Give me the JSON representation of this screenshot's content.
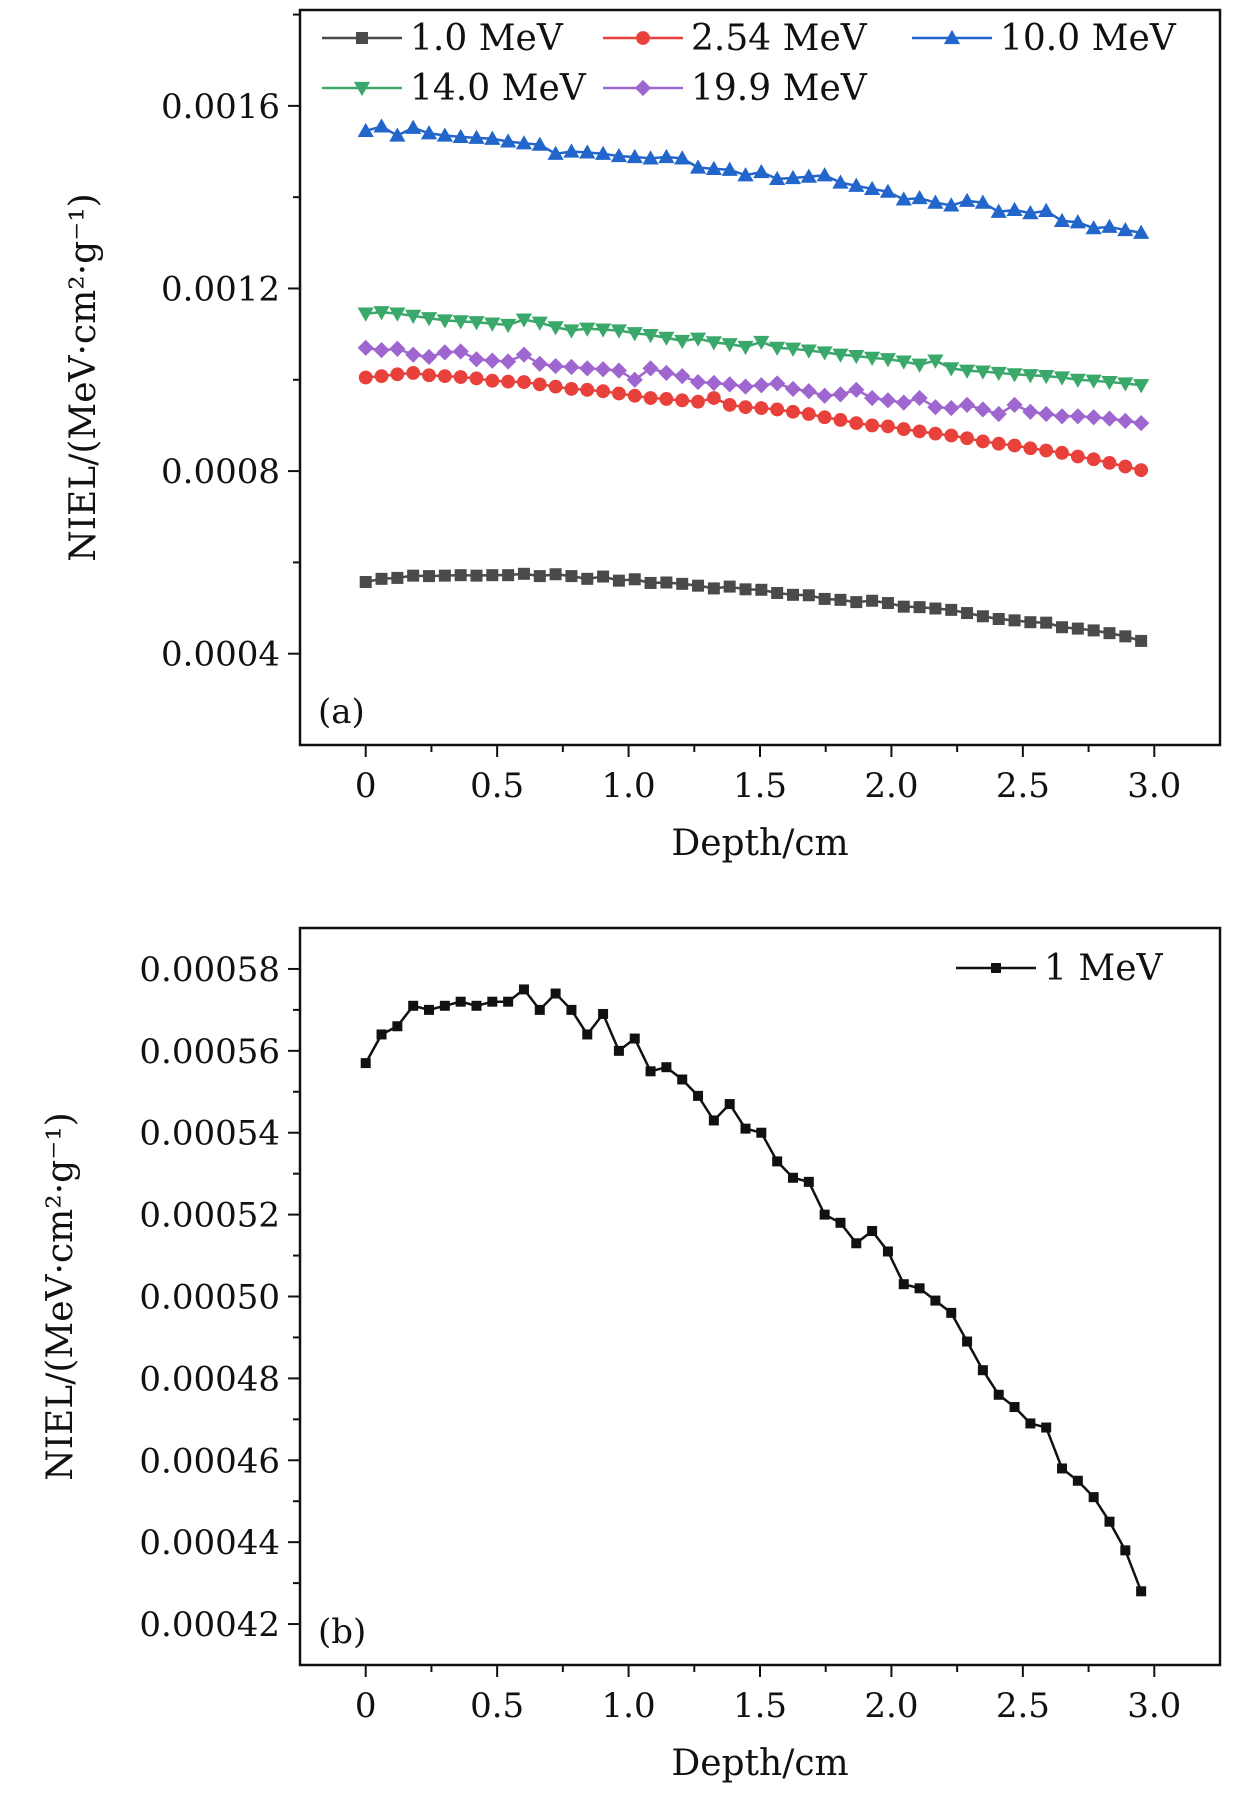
{
  "chart_data": [
    {
      "type": "line",
      "panel_label": "(a)",
      "xlabel": "Depth/cm",
      "ylabel": "NIEL/(MeV·cm²·g⁻¹)",
      "xlim": [
        -0.25,
        3.25
      ],
      "ylim": [
        0.0002,
        0.00181
      ],
      "xticks": [
        "0",
        "0.5",
        "1.0",
        "1.5",
        "2.0",
        "2.5",
        "3.0"
      ],
      "yticks": [
        "0.0004",
        "0.0008",
        "0.0012",
        "0.0016"
      ],
      "legend_position": "top",
      "grid": false,
      "series": [
        {
          "name": "1.0 MeV",
          "color": "#4a4a4a",
          "marker": "square",
          "values": [
            0.000557,
            0.000564,
            0.000566,
            0.000571,
            0.00057,
            0.000571,
            0.000572,
            0.000571,
            0.000572,
            0.000572,
            0.000575,
            0.00057,
            0.000574,
            0.00057,
            0.000564,
            0.000569,
            0.00056,
            0.000563,
            0.000555,
            0.000556,
            0.000553,
            0.000549,
            0.000543,
            0.000547,
            0.000541,
            0.00054,
            0.000533,
            0.000529,
            0.000528,
            0.00052,
            0.000518,
            0.000513,
            0.000516,
            0.000511,
            0.000503,
            0.000502,
            0.000499,
            0.000496,
            0.000489,
            0.000482,
            0.000476,
            0.000473,
            0.000469,
            0.000468,
            0.000458,
            0.000455,
            0.000451,
            0.000445,
            0.000438,
            0.000428
          ]
        },
        {
          "name": "2.54 MeV",
          "color": "#e8413b",
          "marker": "circle",
          "values": [
            0.001005,
            0.001008,
            0.001012,
            0.001015,
            0.00101,
            0.001008,
            0.001006,
            0.001003,
            0.000998,
            0.000996,
            0.000995,
            0.00099,
            0.000985,
            0.00098,
            0.000978,
            0.000975,
            0.00097,
            0.000965,
            0.00096,
            0.000958,
            0.000955,
            0.000952,
            0.00096,
            0.000945,
            0.00094,
            0.000938,
            0.000935,
            0.00093,
            0.000925,
            0.000918,
            0.000912,
            0.000905,
            0.0009,
            0.000898,
            0.000892,
            0.000887,
            0.000882,
            0.000878,
            0.000872,
            0.000865,
            0.00086,
            0.000856,
            0.00085,
            0.000845,
            0.00084,
            0.000832,
            0.000826,
            0.000818,
            0.00081,
            0.000802
          ]
        },
        {
          "name": "10.0 MeV",
          "color": "#2266cc",
          "marker": "triangle-up",
          "values": [
            0.001545,
            0.001555,
            0.001535,
            0.001552,
            0.00154,
            0.001535,
            0.001532,
            0.00153,
            0.001528,
            0.001522,
            0.001518,
            0.001515,
            0.001495,
            0.0015,
            0.001498,
            0.001495,
            0.00149,
            0.001488,
            0.001485,
            0.001488,
            0.001485,
            0.001465,
            0.001462,
            0.00146,
            0.001448,
            0.001455,
            0.00144,
            0.001442,
            0.001445,
            0.001448,
            0.001432,
            0.001425,
            0.001418,
            0.001412,
            0.001395,
            0.001398,
            0.001388,
            0.001382,
            0.001392,
            0.001388,
            0.001368,
            0.001372,
            0.001365,
            0.00137,
            0.001348,
            0.001345,
            0.001332,
            0.001335,
            0.001328,
            0.001322
          ]
        },
        {
          "name": "14.0 MeV",
          "color": "#3aa86a",
          "marker": "triangle-down",
          "values": [
            0.001145,
            0.001148,
            0.001145,
            0.00114,
            0.001135,
            0.00113,
            0.001128,
            0.001126,
            0.001123,
            0.00112,
            0.001132,
            0.001125,
            0.001115,
            0.001108,
            0.001112,
            0.00111,
            0.001108,
            0.001102,
            0.001098,
            0.001092,
            0.001085,
            0.00109,
            0.001082,
            0.001078,
            0.001072,
            0.001083,
            0.00107,
            0.001068,
            0.001064,
            0.00106,
            0.001055,
            0.001052,
            0.001048,
            0.001045,
            0.00104,
            0.001033,
            0.001042,
            0.001025,
            0.00102,
            0.001018,
            0.001015,
            0.001012,
            0.00101,
            0.001008,
            0.001005,
            0.001,
            0.000998,
            0.000995,
            0.000992,
            0.000988
          ]
        },
        {
          "name": "19.9 MeV",
          "color": "#a066d0",
          "marker": "diamond",
          "values": [
            0.00107,
            0.001065,
            0.001068,
            0.001055,
            0.00105,
            0.00106,
            0.001062,
            0.001045,
            0.001042,
            0.00104,
            0.001055,
            0.001035,
            0.00103,
            0.001028,
            0.001025,
            0.001023,
            0.00102,
            0.001,
            0.001025,
            0.001015,
            0.001008,
            0.000995,
            0.000993,
            0.00099,
            0.000985,
            0.000988,
            0.000992,
            0.00098,
            0.000975,
            0.000965,
            0.000968,
            0.000978,
            0.00096,
            0.000955,
            0.00095,
            0.00096,
            0.00094,
            0.000938,
            0.000945,
            0.000935,
            0.000925,
            0.000945,
            0.00093,
            0.000925,
            0.00092,
            0.00092,
            0.000918,
            0.000915,
            0.00091,
            0.000905
          ]
        }
      ]
    },
    {
      "type": "line",
      "panel_label": "(b)",
      "xlabel": "Depth/cm",
      "ylabel": "NIEL/(MeV·cm²·g⁻¹)",
      "xlim": [
        -0.25,
        3.25
      ],
      "ylim": [
        0.00041,
        0.00059
      ],
      "xticks": [
        "0",
        "0.5",
        "1.0",
        "1.5",
        "2.0",
        "2.5",
        "3.0"
      ],
      "yticks": [
        "0.00042",
        "0.00044",
        "0.00046",
        "0.00048",
        "0.00050",
        "0.00052",
        "0.00054",
        "0.00056",
        "0.00058"
      ],
      "legend_position": "top-right",
      "grid": false,
      "series": [
        {
          "name": "1 MeV",
          "color": "#111111",
          "marker": "square",
          "values": [
            0.000557,
            0.000564,
            0.000566,
            0.000571,
            0.00057,
            0.000571,
            0.000572,
            0.000571,
            0.000572,
            0.000572,
            0.000575,
            0.00057,
            0.000574,
            0.00057,
            0.000564,
            0.000569,
            0.00056,
            0.000563,
            0.000555,
            0.000556,
            0.000553,
            0.000549,
            0.000543,
            0.000547,
            0.000541,
            0.00054,
            0.000533,
            0.000529,
            0.000528,
            0.00052,
            0.000518,
            0.000513,
            0.000516,
            0.000511,
            0.000503,
            0.000502,
            0.000499,
            0.000496,
            0.000489,
            0.000482,
            0.000476,
            0.000473,
            0.000469,
            0.000468,
            0.000458,
            0.000455,
            0.000451,
            0.000445,
            0.000438,
            0.000428
          ]
        }
      ]
    }
  ]
}
